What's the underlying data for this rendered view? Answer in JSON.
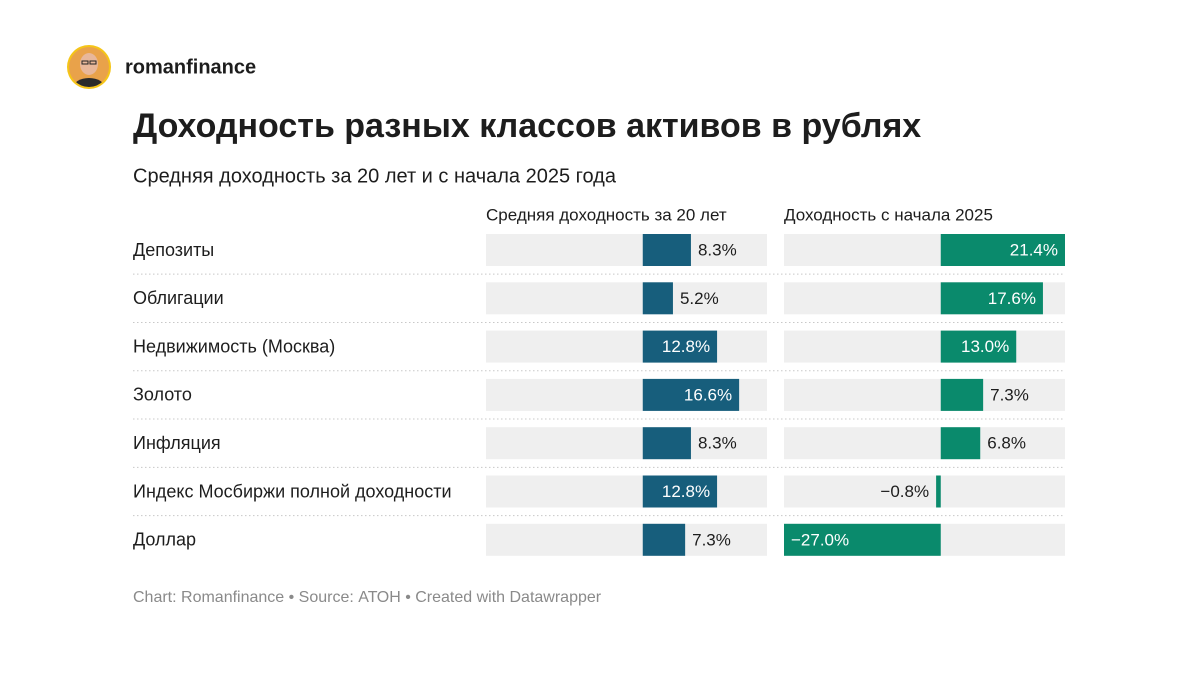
{
  "header": {
    "author": "romanfinance"
  },
  "chart_data": {
    "type": "split-bar",
    "title": "Доходность разных классов активов в рублях",
    "subtitle": "Средняя доходность за 20 лет и с начала 2025 года",
    "source": "Chart: Romanfinance • Source: АТОН • Created with Datawrapper",
    "categories": [
      "Депозиты",
      "Облигации",
      "Недвижимость (Москва)",
      "Золото",
      "Инфляция",
      "Индекс Мосбиржи полной доходности",
      "Доллар"
    ],
    "xlim": [
      -27.0,
      21.4
    ],
    "series": [
      {
        "name": "Средняя доходность за 20 лет",
        "color": "#175e7c",
        "values": [
          8.3,
          5.2,
          12.8,
          16.6,
          8.3,
          12.8,
          7.3
        ],
        "value_labels": [
          "8.3%",
          "5.2%",
          "12.8%",
          "16.6%",
          "8.3%",
          "12.8%",
          "7.3%"
        ]
      },
      {
        "name": "Доходность с начала 2025",
        "color": "#0a8a6c",
        "values": [
          21.4,
          17.6,
          13.0,
          7.3,
          6.8,
          -0.8,
          -27.0
        ],
        "value_labels": [
          "21.4%",
          "17.6%",
          "13.0%",
          "7.3%",
          "6.8%",
          "−0.8%",
          "−27.0%"
        ]
      }
    ]
  }
}
